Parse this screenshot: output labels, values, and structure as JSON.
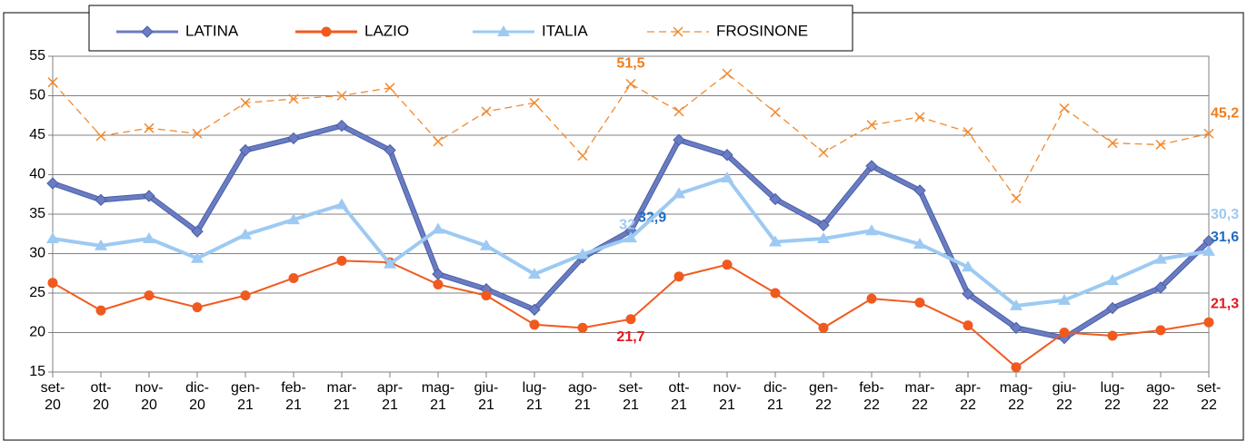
{
  "chart_data": {
    "type": "line",
    "categories": [
      "set-20",
      "ott-20",
      "nov-20",
      "dic-20",
      "gen-21",
      "feb-21",
      "mar-21",
      "apr-21",
      "mag-21",
      "giu-21",
      "lug-21",
      "ago-21",
      "set-21",
      "ott-21",
      "nov-21",
      "dic-21",
      "gen-22",
      "feb-22",
      "mar-22",
      "apr-22",
      "mag-22",
      "giu-22",
      "lug-22",
      "ago-22",
      "set-22"
    ],
    "series": [
      {
        "name": "LATINA",
        "color": "#6a7cc2",
        "marker": "diamond",
        "label_color": "#1f6cc4",
        "values": [
          38.9,
          36.8,
          37.3,
          32.8,
          43.1,
          44.6,
          46.2,
          43.1,
          27.4,
          25.5,
          22.9,
          29.5,
          32.9,
          44.4,
          42.5,
          36.9,
          33.6,
          41.1,
          38.0,
          24.9,
          20.6,
          19.3,
          23.1,
          25.7,
          31.6
        ],
        "value_labels": [
          null,
          null,
          null,
          null,
          null,
          null,
          null,
          null,
          null,
          null,
          null,
          null,
          "32,9",
          null,
          null,
          null,
          null,
          null,
          null,
          null,
          null,
          null,
          null,
          null,
          "31,6"
        ]
      },
      {
        "name": "LAZIO",
        "color": "#f05a1e",
        "marker": "circle",
        "label_color": "#e8141e",
        "values": [
          26.3,
          22.8,
          24.7,
          23.2,
          24.7,
          26.9,
          29.1,
          28.9,
          26.1,
          24.7,
          21.0,
          20.6,
          21.7,
          27.1,
          28.6,
          25.0,
          20.6,
          24.3,
          23.8,
          20.9,
          15.6,
          20.0,
          19.6,
          20.3,
          21.3
        ],
        "value_labels": [
          null,
          null,
          null,
          null,
          null,
          null,
          null,
          null,
          null,
          null,
          null,
          null,
          "21,7",
          null,
          null,
          null,
          null,
          null,
          null,
          null,
          null,
          null,
          null,
          null,
          "21,3"
        ]
      },
      {
        "name": "ITALIA",
        "color": "#9dcaf2",
        "marker": "triangle",
        "label_color": "#9dcaf2",
        "values": [
          31.9,
          31.0,
          31.9,
          29.4,
          32.4,
          34.3,
          36.2,
          28.7,
          33.1,
          31.0,
          27.4,
          29.9,
          32.0,
          37.6,
          39.6,
          31.5,
          31.9,
          32.9,
          31.2,
          28.3,
          23.4,
          24.1,
          26.6,
          29.3,
          30.3
        ],
        "value_labels": [
          null,
          null,
          null,
          null,
          null,
          null,
          null,
          null,
          null,
          null,
          null,
          null,
          "32",
          null,
          null,
          null,
          null,
          null,
          null,
          null,
          null,
          null,
          null,
          null,
          "30,3"
        ]
      },
      {
        "name": "FROSINONE",
        "color": "#f08a30",
        "marker": "x",
        "dashed": true,
        "label_color": "#f07d1e",
        "values": [
          51.7,
          44.9,
          45.9,
          45.2,
          49.1,
          49.6,
          50.0,
          51.0,
          44.2,
          48.0,
          49.1,
          42.4,
          51.5,
          48.0,
          52.8,
          47.9,
          42.8,
          46.3,
          47.3,
          45.4,
          37.0,
          48.4,
          44.0,
          43.8,
          45.2
        ],
        "value_labels": [
          null,
          null,
          null,
          null,
          null,
          null,
          null,
          null,
          null,
          null,
          null,
          null,
          "51,5",
          null,
          null,
          null,
          null,
          null,
          null,
          null,
          null,
          null,
          null,
          null,
          "45,2"
        ]
      }
    ],
    "ylim": [
      15,
      55
    ],
    "yticks": [
      15,
      20,
      25,
      30,
      35,
      40,
      45,
      50,
      55
    ],
    "grid": true,
    "legend": "top"
  }
}
